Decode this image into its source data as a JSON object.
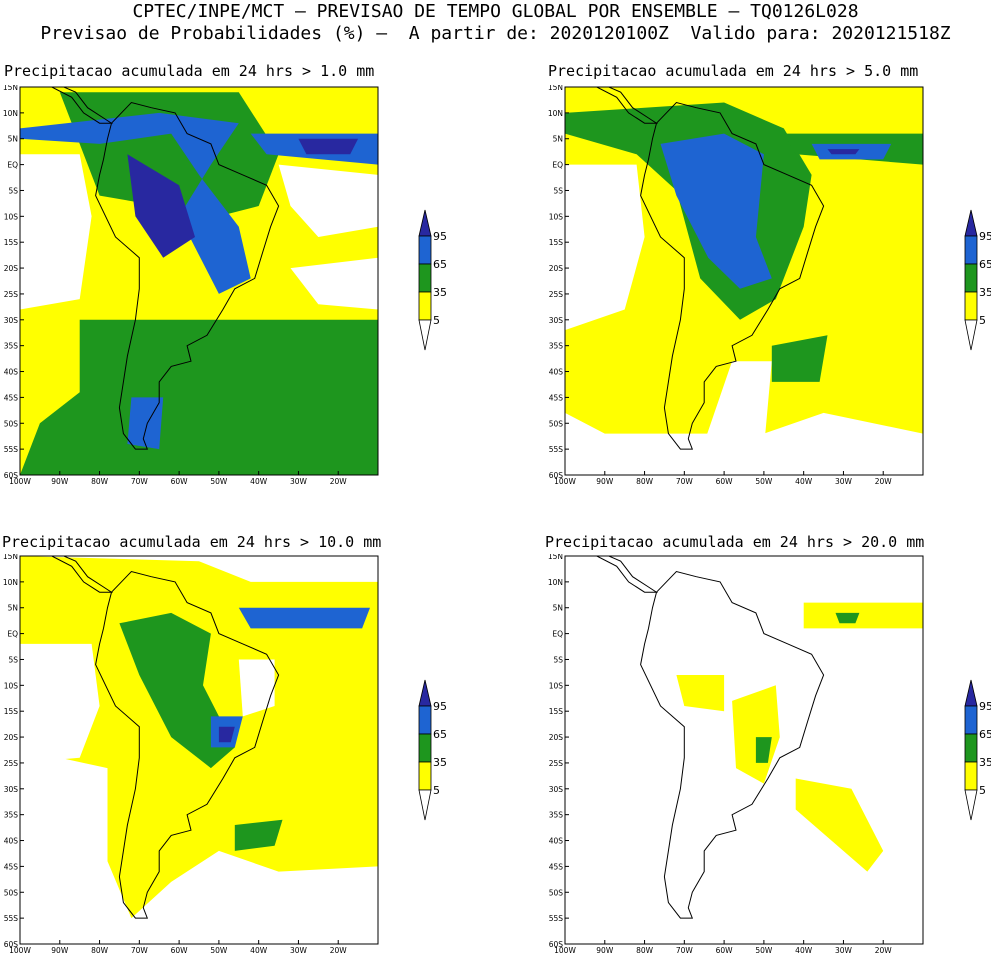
{
  "header": {
    "line1": "CPTEC/INPE/MCT — PREVISAO DE TEMPO GLOBAL POR ENSEMBLE — TQ0126L028",
    "line2": "Previsao de Probabilidades (%) —  A partir de: 2020120100Z  Valido para: 2020121518Z"
  },
  "colors": {
    "yellow": "#FFFF00",
    "green": "#1E961E",
    "blue": "#1E64D2",
    "indigo": "#2828A0",
    "white": "#FFFFFF",
    "border": "#000000"
  },
  "chart_data": [
    {
      "type": "heatmap",
      "title": "Precipitacao acumulada em 24 hrs > 1.0 mm",
      "threshold_mm": 1.0,
      "x_ticks": [
        "100W",
        "90W",
        "80W",
        "70W",
        "60W",
        "50W",
        "40W",
        "30W",
        "20W"
      ],
      "y_ticks": [
        "15N",
        "10N",
        "5N",
        "EQ",
        "5S",
        "10S",
        "15S",
        "20S",
        "25S",
        "30S",
        "35S",
        "40S",
        "45S",
        "50S",
        "55S",
        "60S"
      ],
      "xlim": [
        -100,
        -10
      ],
      "ylim": [
        -60,
        15
      ],
      "legend": {
        "levels": [
          5,
          35,
          65,
          95
        ],
        "labels": [
          "5",
          "35",
          "65",
          "95"
        ]
      }
    },
    {
      "type": "heatmap",
      "title": "Precipitacao acumulada em 24 hrs > 5.0 mm",
      "threshold_mm": 5.0,
      "x_ticks": [
        "100W",
        "90W",
        "80W",
        "70W",
        "60W",
        "50W",
        "40W",
        "30W",
        "20W"
      ],
      "y_ticks": [
        "15N",
        "10N",
        "5N",
        "EQ",
        "5S",
        "10S",
        "15S",
        "20S",
        "25S",
        "30S",
        "35S",
        "40S",
        "45S",
        "50S",
        "55S",
        "60S"
      ],
      "xlim": [
        -100,
        -10
      ],
      "ylim": [
        -60,
        15
      ],
      "legend": {
        "levels": [
          5,
          35,
          65,
          95
        ],
        "labels": [
          "5",
          "35",
          "65",
          "95"
        ]
      }
    },
    {
      "type": "heatmap",
      "title": "Precipitacao acumulada em 24 hrs > 10.0 mm",
      "threshold_mm": 10.0,
      "x_ticks": [
        "100W",
        "90W",
        "80W",
        "70W",
        "60W",
        "50W",
        "40W",
        "30W",
        "20W"
      ],
      "y_ticks": [
        "15N",
        "10N",
        "5N",
        "EQ",
        "5S",
        "10S",
        "15S",
        "20S",
        "25S",
        "30S",
        "35S",
        "40S",
        "45S",
        "50S",
        "55S",
        "60S"
      ],
      "xlim": [
        -100,
        -10
      ],
      "ylim": [
        -60,
        15
      ],
      "legend": {
        "levels": [
          5,
          35,
          65,
          95
        ],
        "labels": [
          "5",
          "35",
          "65",
          "95"
        ]
      }
    },
    {
      "type": "heatmap",
      "title": "Precipitacao acumulada em 24 hrs > 20.0 mm",
      "threshold_mm": 20.0,
      "x_ticks": [
        "100W",
        "90W",
        "80W",
        "70W",
        "60W",
        "50W",
        "40W",
        "30W",
        "20W"
      ],
      "y_ticks": [
        "15N",
        "10N",
        "5N",
        "EQ",
        "5S",
        "10S",
        "15S",
        "20S",
        "25S",
        "30S",
        "35S",
        "40S",
        "45S",
        "50S",
        "55S",
        "60S"
      ],
      "xlim": [
        -100,
        -10
      ],
      "ylim": [
        -60,
        15
      ],
      "legend": {
        "levels": [
          5,
          35,
          65,
          95
        ],
        "labels": [
          "5",
          "35",
          "65",
          "95"
        ]
      }
    }
  ]
}
